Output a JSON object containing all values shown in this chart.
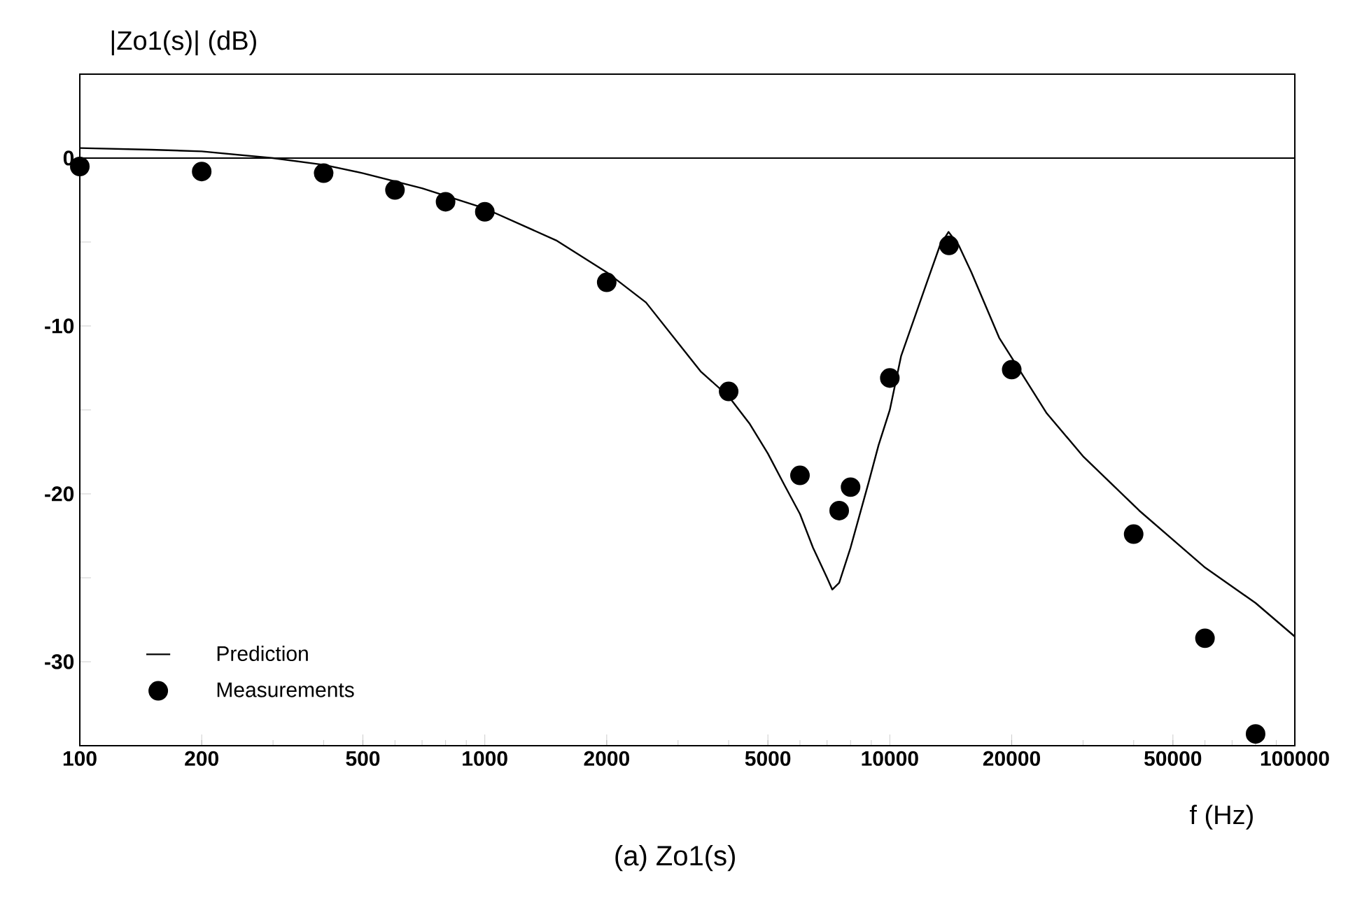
{
  "chart_data": {
    "type": "line",
    "xlabel": "f (Hz)",
    "ylabel": "|Zo1(s)| (dB)",
    "annotations": [
      "(a) Zo1(s)"
    ],
    "log": "x",
    "xlim": [
      100,
      100000
    ],
    "ylim": [
      -35,
      5
    ],
    "xticks": [
      100,
      200,
      500,
      1000,
      2000,
      5000,
      10000,
      20000,
      50000,
      100000
    ],
    "yticks": [
      0,
      {
        "value": -5,
        "label": null
      },
      -10,
      {
        "value": -15,
        "label": null
      },
      -20,
      {
        "value": -25,
        "label": null
      },
      -30
    ],
    "legend": "bottom left",
    "grid": false,
    "ref_lines": [
      {
        "axis": "y",
        "value": 0,
        "color": "#000000"
      }
    ],
    "series": [
      {
        "name": "Prediction",
        "color": "#000000",
        "marker": "none",
        "line_style": "solid",
        "x": [
          100,
          150,
          200,
          300,
          400,
          500,
          700,
          1000,
          1500,
          2000,
          2500,
          3410,
          4000,
          4500,
          5000,
          5500,
          6000,
          6460,
          7000,
          7210,
          7500,
          8000,
          8870,
          9380,
          10000,
          10660,
          12390,
          13300,
          13960,
          14800,
          15900,
          18620,
          24400,
          30100,
          41300,
          60100,
          80000,
          100000
        ],
        "values": [
          0.6,
          0.5,
          0.4,
          0,
          -0.4,
          -0.9,
          -1.8,
          -3.0,
          -4.9,
          -6.8,
          -8.6,
          -12.7,
          -14.2,
          -15.8,
          -17.6,
          -19.5,
          -21.2,
          -23.2,
          -25.0,
          -25.7,
          -25.3,
          -23.2,
          -19.3,
          -17.1,
          -15.0,
          -11.8,
          -7.3,
          -5.2,
          -4.4,
          -5.2,
          -6.8,
          -10.7,
          -15.2,
          -17.8,
          -21.0,
          -24.4,
          -26.5,
          -28.5
        ]
      },
      {
        "name": "Measurements",
        "type": "scatter",
        "color": "#000000",
        "marker": "circle",
        "x": [
          100,
          200,
          400,
          600,
          800,
          1000,
          2000,
          4000,
          6000,
          7500,
          8000,
          10000,
          14000,
          20000,
          40000,
          60000,
          80000
        ],
        "values": [
          -0.5,
          -0.8,
          -0.9,
          -1.9,
          -2.6,
          -3.2,
          -7.4,
          -13.9,
          -18.9,
          -21.0,
          -19.6,
          -13.1,
          -5.2,
          -12.6,
          -22.4,
          -28.6,
          -34.3
        ]
      }
    ]
  }
}
